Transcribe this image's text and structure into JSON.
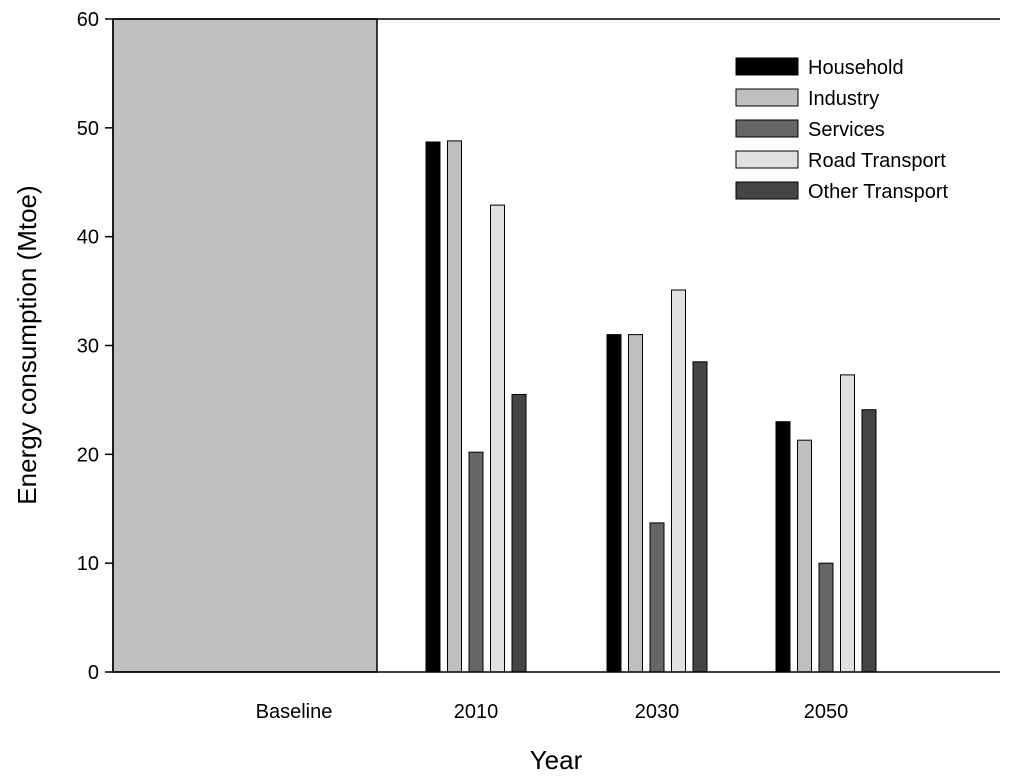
{
  "chart_data": {
    "type": "bar",
    "title": "",
    "xlabel": "Year",
    "ylabel": "Energy consumption (Mtoe)",
    "ylim": [
      0,
      60
    ],
    "yticks": [
      0,
      10,
      20,
      30,
      40,
      50,
      60
    ],
    "categories": [
      "Baseline",
      "2010",
      "2030",
      "2050"
    ],
    "baseline_bar": {
      "value": 60,
      "color": "#c0c0c0"
    },
    "series": [
      {
        "name": "Household",
        "color": "#000000",
        "values": [
          null,
          48.7,
          31.0,
          23.0
        ]
      },
      {
        "name": "Industry",
        "color": "#bfbfbf",
        "values": [
          null,
          48.8,
          31.0,
          21.3
        ]
      },
      {
        "name": "Services",
        "color": "#666666",
        "values": [
          null,
          20.2,
          13.7,
          10.0
        ]
      },
      {
        "name": "Road Transport",
        "color": "#e0e0e0",
        "values": [
          null,
          42.9,
          35.1,
          27.3
        ]
      },
      {
        "name": "Other Transport",
        "color": "#454545",
        "values": [
          null,
          25.5,
          28.5,
          24.1
        ]
      }
    ],
    "legend_position": "top-right",
    "grid": false
  }
}
